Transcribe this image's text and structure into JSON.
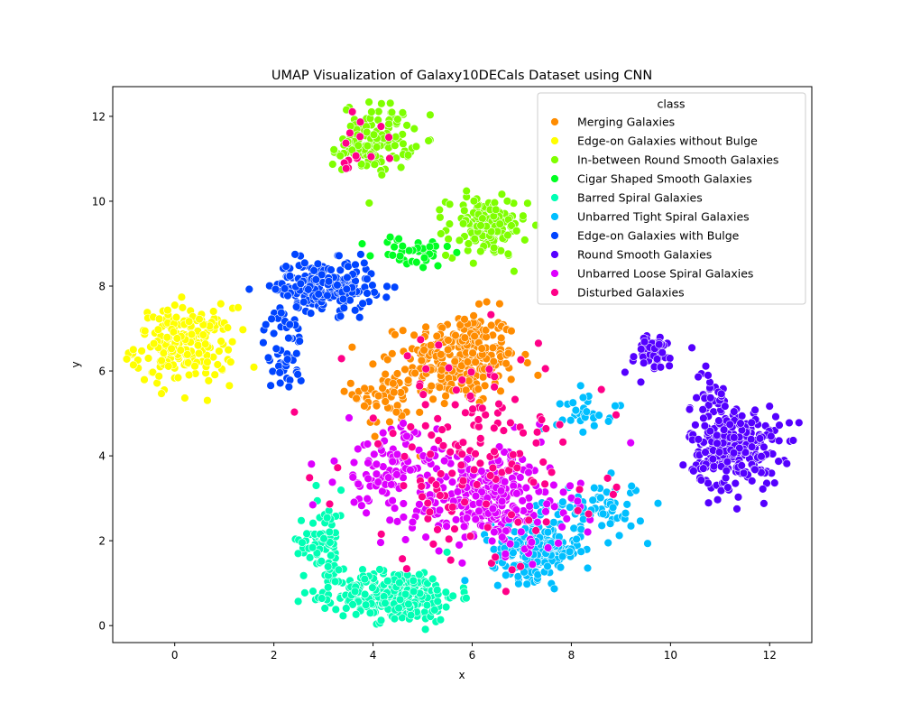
{
  "chart_data": {
    "type": "scatter",
    "title": "UMAP Visualization of Galaxy10DECals Dataset using CNN",
    "xlabel": "x",
    "ylabel": "y",
    "xlim": [
      -1.25,
      12.85
    ],
    "ylim": [
      -0.4,
      12.7
    ],
    "xticks": [
      0,
      2,
      4,
      6,
      8,
      10,
      12
    ],
    "yticks": [
      0,
      2,
      4,
      6,
      8,
      10,
      12
    ],
    "grid": false,
    "legend": {
      "title": "class",
      "position": "top-right"
    },
    "marker_edge_color": "#ffffff",
    "series": [
      {
        "name": "Merging Galaxies",
        "color": "#ff8c00",
        "clusters": [
          {
            "cx": 5.8,
            "cy": 6.3,
            "sx": 0.55,
            "sy": 0.55,
            "n": 260
          },
          {
            "cx": 4.3,
            "cy": 5.5,
            "sx": 0.35,
            "sy": 0.45,
            "n": 60
          }
        ]
      },
      {
        "name": "Edge-on Galaxies without Bulge",
        "color": "#ffff00",
        "clusters": [
          {
            "cx": 0.2,
            "cy": 6.6,
            "sx": 0.5,
            "sy": 0.45,
            "n": 200
          }
        ]
      },
      {
        "name": "In-between Round Smooth Galaxies",
        "color": "#7fff00",
        "clusters": [
          {
            "cx": 4.1,
            "cy": 11.5,
            "sx": 0.35,
            "sy": 0.4,
            "n": 120
          },
          {
            "cx": 6.3,
            "cy": 9.4,
            "sx": 0.4,
            "sy": 0.35,
            "n": 140
          },
          {
            "cx": 3.5,
            "cy": 11.2,
            "sx": 0.2,
            "sy": 0.15,
            "n": 20
          }
        ]
      },
      {
        "name": "Cigar Shaped Smooth Galaxies",
        "color": "#00ff22",
        "clusters": [
          {
            "cx": 4.8,
            "cy": 8.8,
            "sx": 0.4,
            "sy": 0.2,
            "n": 40
          }
        ]
      },
      {
        "name": "Barred Spiral Galaxies",
        "color": "#00ffb4",
        "clusters": [
          {
            "cx": 4.5,
            "cy": 0.7,
            "sx": 0.6,
            "sy": 0.3,
            "n": 300
          },
          {
            "cx": 3.0,
            "cy": 2.0,
            "sx": 0.25,
            "sy": 0.6,
            "n": 80
          }
        ]
      },
      {
        "name": "Unbarred Tight Spiral Galaxies",
        "color": "#00bfff",
        "clusters": [
          {
            "cx": 7.3,
            "cy": 1.8,
            "sx": 0.45,
            "sy": 0.35,
            "n": 220
          },
          {
            "cx": 8.5,
            "cy": 2.8,
            "sx": 0.5,
            "sy": 0.3,
            "n": 60
          },
          {
            "cx": 8.3,
            "cy": 5.1,
            "sx": 0.3,
            "sy": 0.25,
            "n": 30
          }
        ]
      },
      {
        "name": "Edge-on Galaxies with Bulge",
        "color": "#0044ff",
        "clusters": [
          {
            "cx": 3.0,
            "cy": 8.0,
            "sx": 0.5,
            "sy": 0.3,
            "n": 220
          },
          {
            "cx": 2.2,
            "cy": 6.5,
            "sx": 0.2,
            "sy": 0.5,
            "n": 50
          }
        ]
      },
      {
        "name": "Round Smooth Galaxies",
        "color": "#5500ff",
        "clusters": [
          {
            "cx": 11.3,
            "cy": 4.2,
            "sx": 0.45,
            "sy": 0.5,
            "n": 260
          },
          {
            "cx": 9.6,
            "cy": 6.4,
            "sx": 0.3,
            "sy": 0.25,
            "n": 50
          },
          {
            "cx": 10.8,
            "cy": 5.4,
            "sx": 0.2,
            "sy": 0.3,
            "n": 30
          }
        ]
      },
      {
        "name": "Unbarred Loose Spiral Galaxies",
        "color": "#dd00ff",
        "clusters": [
          {
            "cx": 6.3,
            "cy": 3.0,
            "sx": 0.8,
            "sy": 0.6,
            "n": 300
          },
          {
            "cx": 4.3,
            "cy": 3.7,
            "sx": 0.5,
            "sy": 0.5,
            "n": 100
          }
        ]
      },
      {
        "name": "Disturbed Galaxies",
        "color": "#ff0088",
        "clusters": [
          {
            "cx": 6.0,
            "cy": 4.0,
            "sx": 1.3,
            "sy": 1.3,
            "n": 150
          },
          {
            "cx": 3.6,
            "cy": 11.3,
            "sx": 0.3,
            "sy": 0.4,
            "n": 15
          }
        ]
      }
    ]
  }
}
